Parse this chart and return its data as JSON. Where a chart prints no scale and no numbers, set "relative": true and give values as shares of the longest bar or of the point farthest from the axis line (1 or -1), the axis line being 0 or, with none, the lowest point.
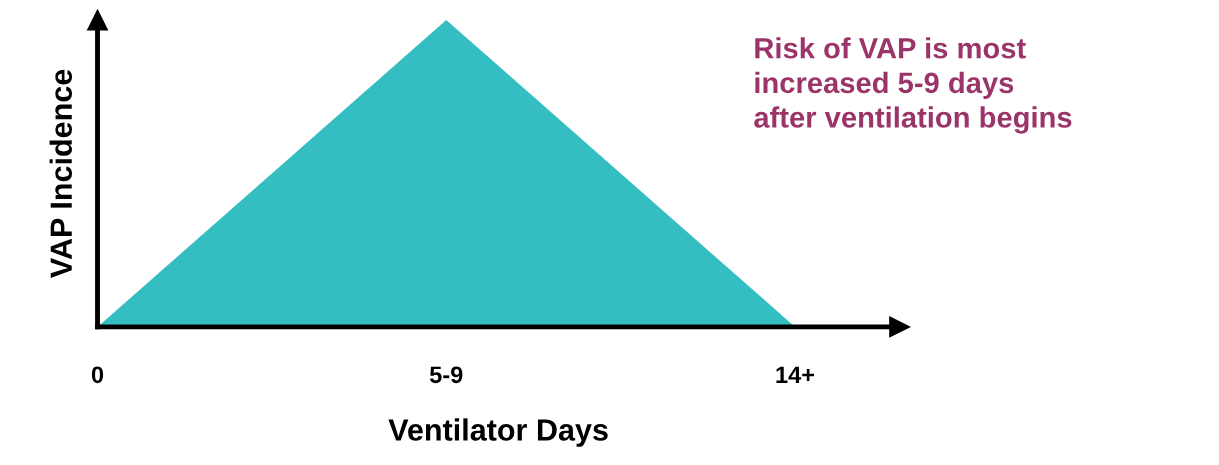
{
  "chart_data": {
    "type": "area",
    "relative": true,
    "xlabel": "Ventilator Days",
    "ylabel": "VAP Incidence",
    "categories": [
      "0",
      "5-9",
      "14+"
    ],
    "series": [
      {
        "color": "#35bec2",
        "values": [
          0,
          1,
          0
        ]
      }
    ],
    "annotations": [
      "Risk of VAP is most\nincreased 5-9 days\nafter ventilation begins"
    ],
    "grid": false
  }
}
